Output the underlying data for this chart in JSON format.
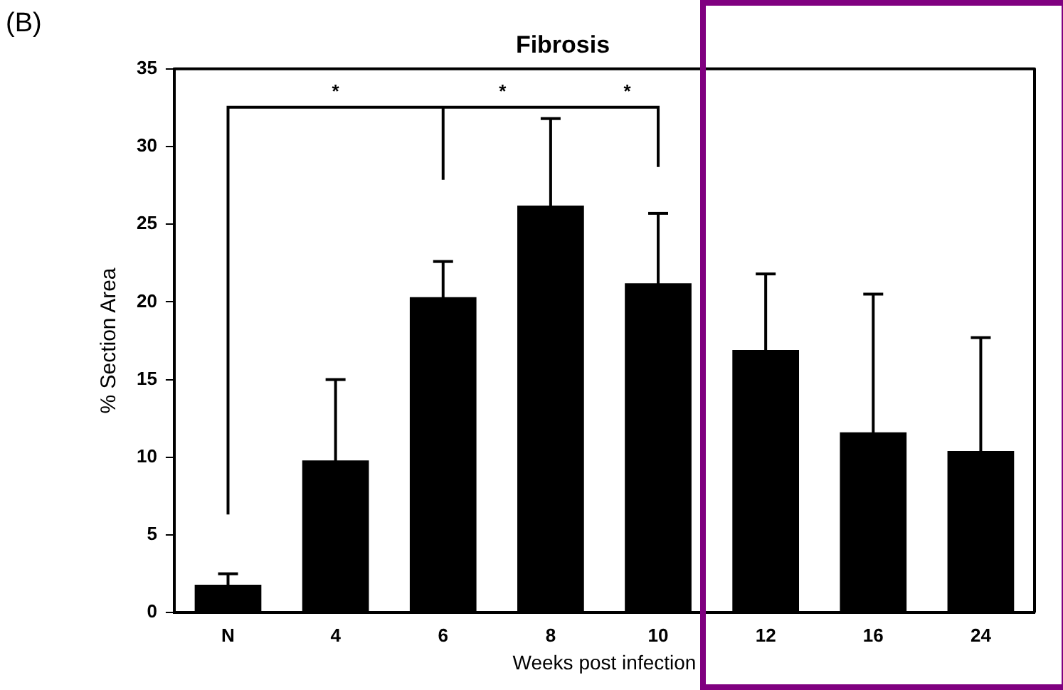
{
  "chart_data": {
    "type": "bar",
    "title": "Fibrosis",
    "xlabel": "Weeks post infection",
    "ylabel": "% Section Area",
    "categories": [
      "N",
      "4",
      "6",
      "8",
      "10",
      "12",
      "16",
      "24"
    ],
    "values": [
      1.8,
      9.8,
      20.3,
      26.2,
      21.2,
      16.9,
      11.6,
      10.4
    ],
    "errors": [
      0.7,
      5.2,
      2.3,
      5.6,
      4.5,
      4.9,
      8.9,
      7.3
    ],
    "color": "#000000",
    "ylim": [
      0,
      35
    ],
    "yticks": [
      0,
      5,
      10,
      15,
      20,
      25,
      30,
      35
    ],
    "grid": false,
    "legend": false,
    "annotations": [
      "(B)",
      "*",
      "*",
      "*"
    ]
  }
}
